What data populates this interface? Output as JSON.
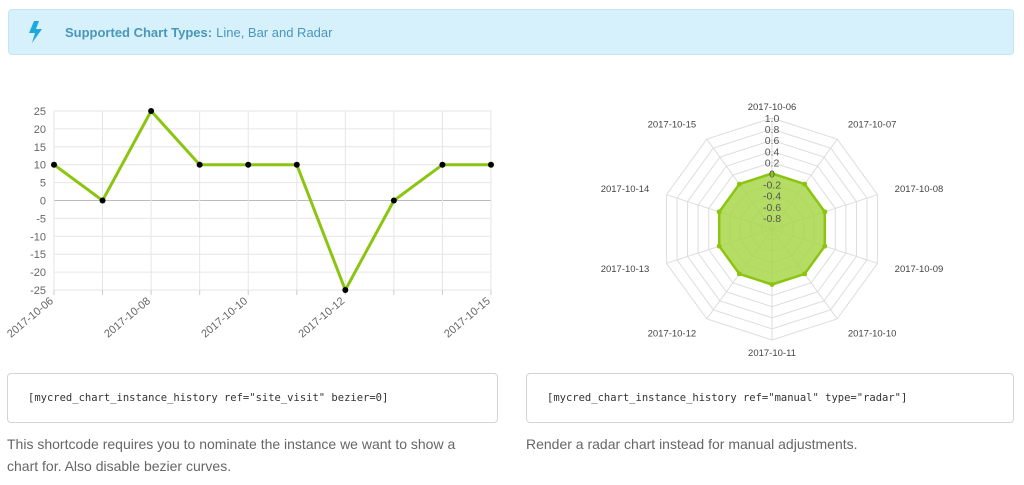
{
  "notice": {
    "icon": "lightning-bolt-icon",
    "title": "Supported Chart Types:",
    "text": "Line, Bar and Radar"
  },
  "left": {
    "code": "[mycred_chart_instance_history ref=\"site_visit\" bezier=0]",
    "description_line1": "This shortcode requires you to nominate the instance we want to show a",
    "description_line2": "chart for. Also disable bezier curves."
  },
  "right": {
    "code": "[mycred_chart_instance_history ref=\"manual\" type=\"radar\"]",
    "description": "Render a radar chart instead for manual adjustments."
  },
  "chart_data": [
    {
      "type": "line",
      "x": [
        "2017-10-06",
        "2017-10-07",
        "2017-10-08",
        "2017-10-09",
        "2017-10-10",
        "2017-10-11",
        "2017-10-12",
        "2017-10-13",
        "2017-10-14",
        "2017-10-15"
      ],
      "xtick_labels": [
        "2017-10-06",
        "2017-10-08",
        "2017-10-10",
        "2017-10-12",
        "2017-10-15"
      ],
      "series": [
        {
          "values": [
            10,
            0,
            25,
            10,
            10,
            10,
            -25,
            0,
            10,
            10
          ]
        }
      ],
      "yticks": [
        25,
        20,
        15,
        10,
        5,
        0,
        -5,
        -10,
        -15,
        -20,
        -25
      ],
      "ylim": [
        -25,
        25
      ],
      "line_color": "#8cc511",
      "point_color": "#000000",
      "grid": true
    },
    {
      "type": "radar",
      "categories": [
        "2017-10-06",
        "2017-10-07",
        "2017-10-08",
        "2017-10-09",
        "2017-10-10",
        "2017-10-11",
        "2017-10-12",
        "2017-10-13",
        "2017-10-14",
        "2017-10-15"
      ],
      "series": [
        {
          "values": [
            0,
            0,
            0,
            0,
            0,
            0,
            0,
            0,
            0,
            0
          ]
        }
      ],
      "scale_ticks": [
        "1.0",
        "0.8",
        "0.6",
        "0.4",
        "0.2",
        "0",
        "-0.2",
        "-0.4",
        "-0.6",
        "-0.8"
      ],
      "rlim": [
        -1,
        1
      ],
      "fill_color": "#a8d64a",
      "line_color": "#8cc511",
      "grid": true
    }
  ]
}
